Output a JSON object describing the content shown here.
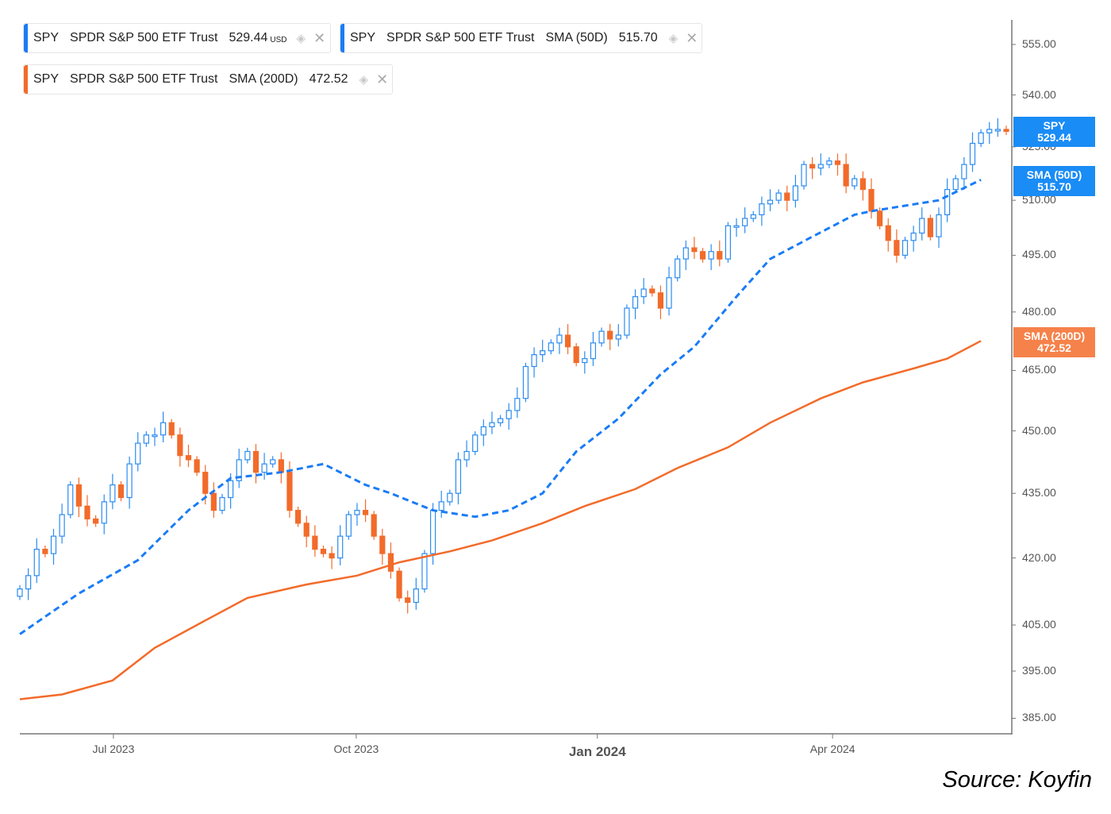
{
  "legends": [
    {
      "ticker": "SPY",
      "name": "SPDR S&P 500 ETF Trust",
      "indicator": "",
      "value": "529.44",
      "unit": "USD",
      "color": "#1a7cf5"
    },
    {
      "ticker": "SPY",
      "name": "SPDR S&P 500 ETF Trust",
      "indicator": "SMA (50D)",
      "value": "515.70",
      "color": "#1a7cf5"
    },
    {
      "ticker": "SPY",
      "name": "SPDR S&P 500 ETF Trust",
      "indicator": "SMA (200D)",
      "value": "472.52",
      "color": "#f26b2a"
    }
  ],
  "badges": [
    {
      "label": "SPY",
      "value": "529.44",
      "color": "#1a8cf5"
    },
    {
      "label": "SMA (50D)",
      "value": "515.70",
      "color": "#1a8cf5"
    },
    {
      "label": "SMA (200D)",
      "value": "472.52",
      "color": "#f5824a"
    }
  ],
  "source": "Source: Koyfin",
  "chart_data": {
    "type": "candlestick",
    "scale": "log",
    "ylim": [
      382,
      560
    ],
    "y_ticks": [
      "555.00",
      "540.00",
      "525.00",
      "510.00",
      "495.00",
      "480.00",
      "465.00",
      "450.00",
      "435.00",
      "420.00",
      "405.00",
      "395.00",
      "385.00"
    ],
    "x_ticks": [
      {
        "label": "Jul 2023",
        "index": 11.1
      },
      {
        "label": "Oct 2023",
        "index": 39.9
      },
      {
        "label": "Jan 2024",
        "index": 68.5,
        "bold": true
      },
      {
        "label": "Apr 2024",
        "index": 96.4
      }
    ],
    "up_color": "#2b8cf0",
    "down_color": "#f26b2a",
    "closes": [
      413,
      416,
      422,
      421,
      425,
      430,
      437,
      432,
      429,
      428,
      433,
      437,
      434,
      442,
      447,
      449,
      449,
      452,
      449,
      444,
      443,
      440,
      435,
      431,
      434,
      438,
      443,
      445,
      440,
      442,
      443,
      440,
      431,
      428,
      425,
      422,
      421,
      420,
      425,
      430,
      431,
      430,
      425,
      421,
      417,
      411,
      410,
      413,
      421,
      431,
      433,
      435,
      443,
      445,
      449,
      451,
      452,
      453,
      455,
      458,
      466,
      469,
      470,
      472,
      474,
      471,
      467,
      468,
      472,
      475,
      473,
      474,
      481,
      484,
      486,
      485,
      481,
      489,
      494,
      497,
      496,
      494,
      496,
      494,
      503,
      503,
      505,
      506,
      509,
      510,
      512,
      510,
      514,
      520,
      519,
      520,
      521,
      520,
      514,
      516,
      513,
      507,
      503,
      499,
      495,
      499,
      501,
      505,
      500,
      506,
      513,
      516,
      520,
      526,
      529,
      530,
      530,
      529.44
    ],
    "series": [
      {
        "name": "SMA (50D)",
        "style": "dashed",
        "color": "#1a7cf5",
        "points": [
          [
            0,
            403
          ],
          [
            7,
            412
          ],
          [
            14,
            419.5
          ],
          [
            20,
            431
          ],
          [
            25,
            438.6
          ],
          [
            31,
            440
          ],
          [
            36,
            442
          ],
          [
            41,
            437
          ],
          [
            44,
            435
          ],
          [
            49,
            431
          ],
          [
            54,
            429.5
          ],
          [
            58,
            431
          ],
          [
            62,
            435
          ],
          [
            66,
            445
          ],
          [
            71,
            453
          ],
          [
            76,
            464
          ],
          [
            80,
            471
          ],
          [
            85,
            484
          ],
          [
            89,
            494
          ],
          [
            94,
            500
          ],
          [
            99,
            506
          ],
          [
            101,
            507
          ],
          [
            105,
            508.5
          ],
          [
            109,
            510
          ],
          [
            114,
            515.7
          ]
        ]
      },
      {
        "name": "SMA (200D)",
        "style": "solid",
        "color": "#f26b2a",
        "points": [
          [
            0,
            389
          ],
          [
            5,
            390
          ],
          [
            11,
            393
          ],
          [
            16,
            400
          ],
          [
            22,
            406
          ],
          [
            27,
            411
          ],
          [
            34,
            414
          ],
          [
            40,
            416
          ],
          [
            45,
            419
          ],
          [
            51,
            421.5
          ],
          [
            56,
            424
          ],
          [
            62,
            428
          ],
          [
            67,
            432
          ],
          [
            73,
            436
          ],
          [
            78,
            441
          ],
          [
            84,
            446
          ],
          [
            89,
            452
          ],
          [
            95,
            458
          ],
          [
            100,
            462
          ],
          [
            106,
            465.5
          ],
          [
            110,
            468
          ],
          [
            114,
            472.52
          ]
        ]
      }
    ]
  }
}
